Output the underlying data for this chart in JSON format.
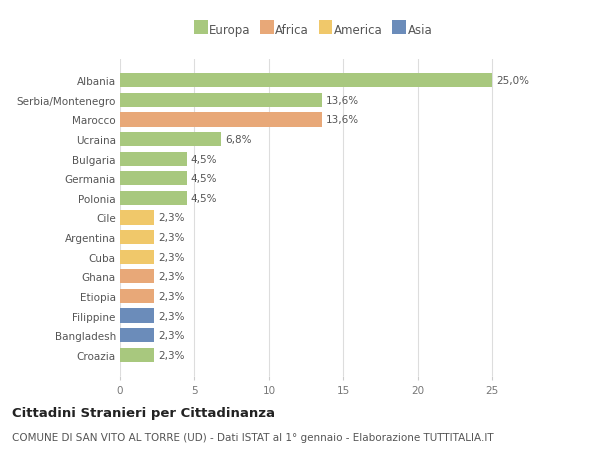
{
  "countries": [
    "Albania",
    "Serbia/Montenegro",
    "Marocco",
    "Ucraina",
    "Bulgaria",
    "Germania",
    "Polonia",
    "Cile",
    "Argentina",
    "Cuba",
    "Ghana",
    "Etiopia",
    "Filippine",
    "Bangladesh",
    "Croazia"
  ],
  "values": [
    25.0,
    13.6,
    13.6,
    6.8,
    4.5,
    4.5,
    4.5,
    2.3,
    2.3,
    2.3,
    2.3,
    2.3,
    2.3,
    2.3,
    2.3
  ],
  "labels": [
    "25,0%",
    "13,6%",
    "13,6%",
    "6,8%",
    "4,5%",
    "4,5%",
    "4,5%",
    "2,3%",
    "2,3%",
    "2,3%",
    "2,3%",
    "2,3%",
    "2,3%",
    "2,3%",
    "2,3%"
  ],
  "continents": [
    "Europa",
    "Europa",
    "Africa",
    "Europa",
    "Europa",
    "Europa",
    "Europa",
    "America",
    "America",
    "America",
    "Africa",
    "Africa",
    "Asia",
    "Asia",
    "Europa"
  ],
  "continent_colors": {
    "Europa": "#a8c87e",
    "Africa": "#e8a878",
    "America": "#f0c86a",
    "Asia": "#6b8cba"
  },
  "legend_order": [
    "Europa",
    "Africa",
    "America",
    "Asia"
  ],
  "xlim": [
    0,
    27
  ],
  "xticks": [
    0,
    5,
    10,
    15,
    20,
    25
  ],
  "title1": "Cittadini Stranieri per Cittadinanza",
  "title2": "COMUNE DI SAN VITO AL TORRE (UD) - Dati ISTAT al 1° gennaio - Elaborazione TUTTITALIA.IT",
  "bg_color": "#ffffff",
  "grid_color": "#dddddd",
  "bar_height": 0.72,
  "label_fontsize": 7.5,
  "ytick_fontsize": 7.5,
  "xtick_fontsize": 7.5,
  "legend_fontsize": 8.5,
  "title1_fontsize": 9.5,
  "title2_fontsize": 7.5
}
